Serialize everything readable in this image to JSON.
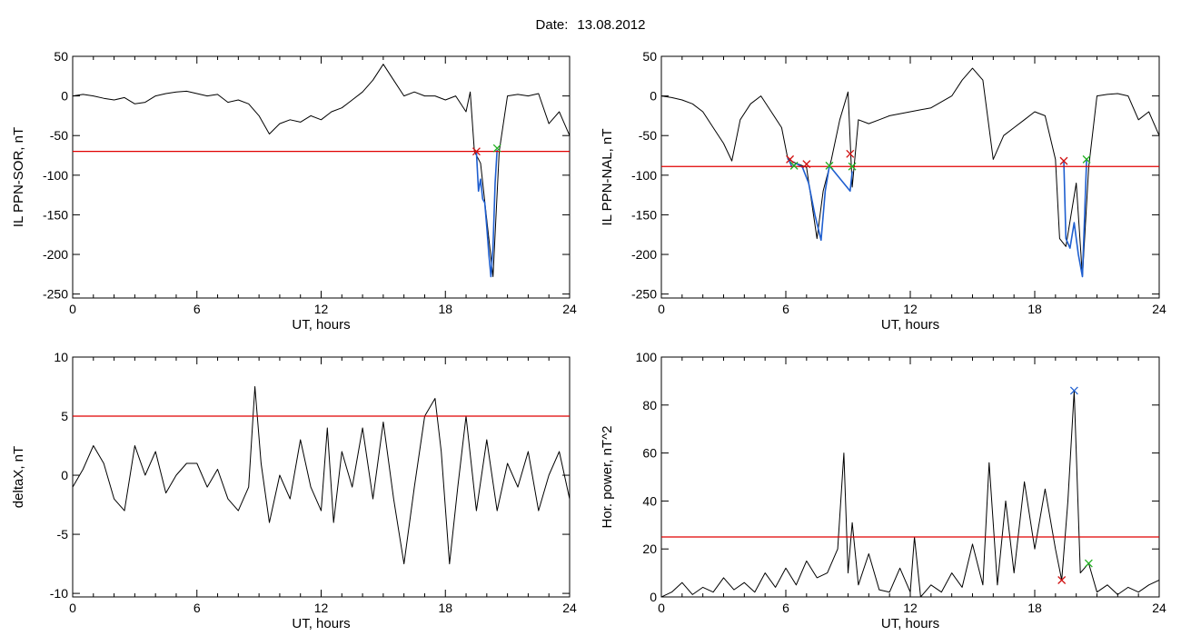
{
  "header": {
    "date_label": "Date:",
    "date_value": "13.08.2012"
  },
  "colors": {
    "trace": "#000000",
    "threshold": "#e00000",
    "event": "#1f5fd0",
    "start_marker": "#d01010",
    "end_marker": "#20b020",
    "peak_marker": "#1f5fd0"
  },
  "chart_data": [
    {
      "type": "line",
      "id": "il-sor",
      "title": "",
      "xlabel": "UT, hours",
      "ylabel": "IL PPN-SOR, nT",
      "xlim": [
        0,
        24
      ],
      "ylim": [
        -255,
        50
      ],
      "xticks": [
        0,
        6,
        12,
        18,
        24
      ],
      "yticks": [
        50,
        0,
        -50,
        -100,
        -150,
        -200,
        -250
      ],
      "grid": false,
      "threshold": -70,
      "series": [
        {
          "role": "trace",
          "x": [
            0,
            0.5,
            1,
            1.5,
            2,
            2.5,
            3,
            3.5,
            4,
            4.5,
            5,
            5.5,
            6,
            6.5,
            7,
            7.5,
            8,
            8.5,
            9,
            9.5,
            10,
            10.5,
            11,
            11.5,
            12,
            12.5,
            13,
            13.5,
            14,
            14.5,
            15,
            15.5,
            16,
            16.5,
            17,
            17.5,
            18,
            18.5,
            19,
            19.2,
            19.4,
            19.7,
            20.1,
            20.3,
            20.6,
            21,
            21.5,
            22,
            22.5,
            23,
            23.5,
            24
          ],
          "y": [
            0,
            2,
            0,
            -3,
            -5,
            -2,
            -10,
            -8,
            0,
            3,
            5,
            6,
            3,
            0,
            2,
            -8,
            -5,
            -10,
            -25,
            -48,
            -35,
            -30,
            -33,
            -25,
            -30,
            -20,
            -15,
            -5,
            5,
            20,
            40,
            20,
            0,
            5,
            0,
            0,
            -5,
            0,
            -20,
            5,
            -70,
            -85,
            -180,
            -228,
            -70,
            0,
            2,
            0,
            3,
            -35,
            -20,
            -50
          ]
        },
        {
          "role": "event",
          "x": [
            19.5,
            19.6,
            19.7,
            19.8,
            19.9,
            20.0,
            20.1,
            20.2,
            20.3,
            20.4,
            20.5
          ],
          "y": [
            -70,
            -120,
            -105,
            -130,
            -135,
            -165,
            -200,
            -228,
            -190,
            -110,
            -68
          ]
        }
      ],
      "markers": [
        {
          "kind": "start",
          "x": 19.5,
          "y": -70
        },
        {
          "kind": "end",
          "x": 20.5,
          "y": -66
        }
      ]
    },
    {
      "type": "line",
      "id": "il-nal",
      "title": "",
      "xlabel": "UT, hours",
      "ylabel": "IL PPN-NAL, nT",
      "xlim": [
        0,
        24
      ],
      "ylim": [
        -255,
        50
      ],
      "xticks": [
        0,
        6,
        12,
        18,
        24
      ],
      "yticks": [
        50,
        0,
        -50,
        -100,
        -150,
        -200,
        -250
      ],
      "grid": false,
      "threshold": -89,
      "series": [
        {
          "role": "trace",
          "x": [
            0,
            0.5,
            1,
            1.5,
            2,
            2.5,
            3,
            3.4,
            3.8,
            4.3,
            4.8,
            5.3,
            5.8,
            6.1,
            6.5,
            7,
            7.5,
            7.8,
            8.2,
            8.6,
            9,
            9.2,
            9.5,
            10,
            10.5,
            11,
            12,
            13,
            14,
            14.5,
            15,
            15.5,
            16,
            16.5,
            17,
            17.5,
            18,
            18.5,
            19,
            19.2,
            19.5,
            20,
            20.3,
            20.6,
            21,
            21.5,
            22,
            22.5,
            23,
            23.5,
            24
          ],
          "y": [
            0,
            -2,
            -5,
            -10,
            -20,
            -40,
            -60,
            -82,
            -30,
            -10,
            0,
            -20,
            -40,
            -80,
            -85,
            -90,
            -180,
            -120,
            -80,
            -30,
            5,
            -115,
            -30,
            -35,
            -30,
            -25,
            -20,
            -15,
            0,
            20,
            35,
            20,
            -80,
            -50,
            -40,
            -30,
            -20,
            -25,
            -80,
            -180,
            -190,
            -110,
            -228,
            -90,
            0,
            2,
            3,
            0,
            -30,
            -20,
            -50
          ]
        },
        {
          "role": "event",
          "x": [
            6.1,
            6.3,
            6.5,
            6.8,
            7.1,
            7.4,
            7.7,
            7.9,
            8.1,
            9.1,
            9.2
          ],
          "y": [
            -78,
            -90,
            -85,
            -90,
            -110,
            -150,
            -182,
            -120,
            -88,
            -120,
            -95
          ]
        },
        {
          "role": "event",
          "x": [
            19.4,
            19.5,
            19.7,
            19.9,
            20.1,
            20.3,
            20.5
          ],
          "y": [
            -82,
            -180,
            -192,
            -160,
            -200,
            -228,
            -80
          ]
        }
      ],
      "markers": [
        {
          "kind": "start",
          "x": 6.2,
          "y": -80
        },
        {
          "kind": "end",
          "x": 6.4,
          "y": -88
        },
        {
          "kind": "start",
          "x": 7.0,
          "y": -86
        },
        {
          "kind": "end",
          "x": 8.1,
          "y": -88
        },
        {
          "kind": "start",
          "x": 9.1,
          "y": -73
        },
        {
          "kind": "end",
          "x": 9.2,
          "y": -89
        },
        {
          "kind": "start",
          "x": 19.4,
          "y": -82
        },
        {
          "kind": "end",
          "x": 20.5,
          "y": -80
        }
      ]
    },
    {
      "type": "line",
      "id": "delta-x",
      "title": "",
      "xlabel": "UT, hours",
      "ylabel": "deltaX, nT",
      "xlim": [
        0,
        24
      ],
      "ylim": [
        -10.3,
        10
      ],
      "xticks": [
        0,
        6,
        12,
        18,
        24
      ],
      "yticks": [
        10,
        5,
        0,
        -5,
        -10
      ],
      "grid": false,
      "threshold": 5,
      "series": [
        {
          "role": "trace",
          "x": [
            0,
            0.5,
            1,
            1.5,
            2,
            2.5,
            3,
            3.5,
            4,
            4.5,
            5,
            5.5,
            6,
            6.5,
            7,
            7.5,
            8,
            8.5,
            8.8,
            9.1,
            9.5,
            10,
            10.5,
            11,
            11.5,
            12,
            12.3,
            12.6,
            13,
            13.5,
            14,
            14.5,
            15,
            15.5,
            16,
            16.5,
            17,
            17.5,
            17.8,
            18.2,
            18.6,
            19,
            19.5,
            20,
            20.5,
            21,
            21.5,
            22,
            22.5,
            23,
            23.5,
            24
          ],
          "y": [
            -1,
            0.5,
            2.5,
            1,
            -2,
            -3,
            2.5,
            0,
            2,
            -1.5,
            0,
            1,
            1,
            -1,
            0.5,
            -2,
            -3,
            -1,
            7.5,
            1,
            -4,
            0,
            -2,
            3,
            -1,
            -3,
            4,
            -4,
            2,
            -1,
            4,
            -2,
            4.5,
            -2,
            -7.5,
            -1,
            5,
            6.5,
            2,
            -7.5,
            -1,
            5,
            -3,
            3,
            -3,
            1,
            -1,
            2,
            -3,
            0,
            2,
            -2
          ]
        }
      ]
    },
    {
      "type": "line",
      "id": "hor-power",
      "title": "",
      "xlabel": "UT, hours",
      "ylabel": "Hor. power, nT^2",
      "xlim": [
        0,
        24
      ],
      "ylim": [
        0,
        100
      ],
      "xticks": [
        0,
        6,
        12,
        18,
        24
      ],
      "yticks": [
        0,
        20,
        40,
        60,
        80,
        100
      ],
      "grid": false,
      "threshold": 25,
      "series": [
        {
          "role": "trace",
          "x": [
            0,
            0.5,
            1,
            1.5,
            2,
            2.5,
            3,
            3.5,
            4,
            4.5,
            5,
            5.5,
            6,
            6.5,
            7,
            7.5,
            8,
            8.5,
            8.8,
            9.0,
            9.2,
            9.5,
            10,
            10.5,
            11,
            11.5,
            12,
            12.2,
            12.5,
            13,
            13.5,
            14,
            14.5,
            15,
            15.5,
            15.8,
            16.2,
            16.6,
            17,
            17.5,
            18,
            18.5,
            19,
            19.3,
            19.6,
            19.9,
            20.2,
            20.6,
            21,
            21.5,
            22,
            22.5,
            23,
            23.5,
            24
          ],
          "y": [
            0,
            2,
            6,
            1,
            4,
            2,
            8,
            3,
            6,
            2,
            10,
            4,
            12,
            5,
            15,
            8,
            10,
            20,
            60,
            10,
            31,
            5,
            18,
            3,
            2,
            12,
            2,
            25,
            0,
            5,
            2,
            10,
            4,
            22,
            5,
            56,
            5,
            40,
            10,
            48,
            20,
            45,
            20,
            7,
            40,
            86,
            10,
            14,
            2,
            5,
            1,
            4,
            2,
            5,
            7
          ]
        }
      ],
      "markers": [
        {
          "kind": "start",
          "x": 19.3,
          "y": 7
        },
        {
          "kind": "peak",
          "x": 19.9,
          "y": 86
        },
        {
          "kind": "end",
          "x": 20.6,
          "y": 14
        }
      ]
    }
  ]
}
